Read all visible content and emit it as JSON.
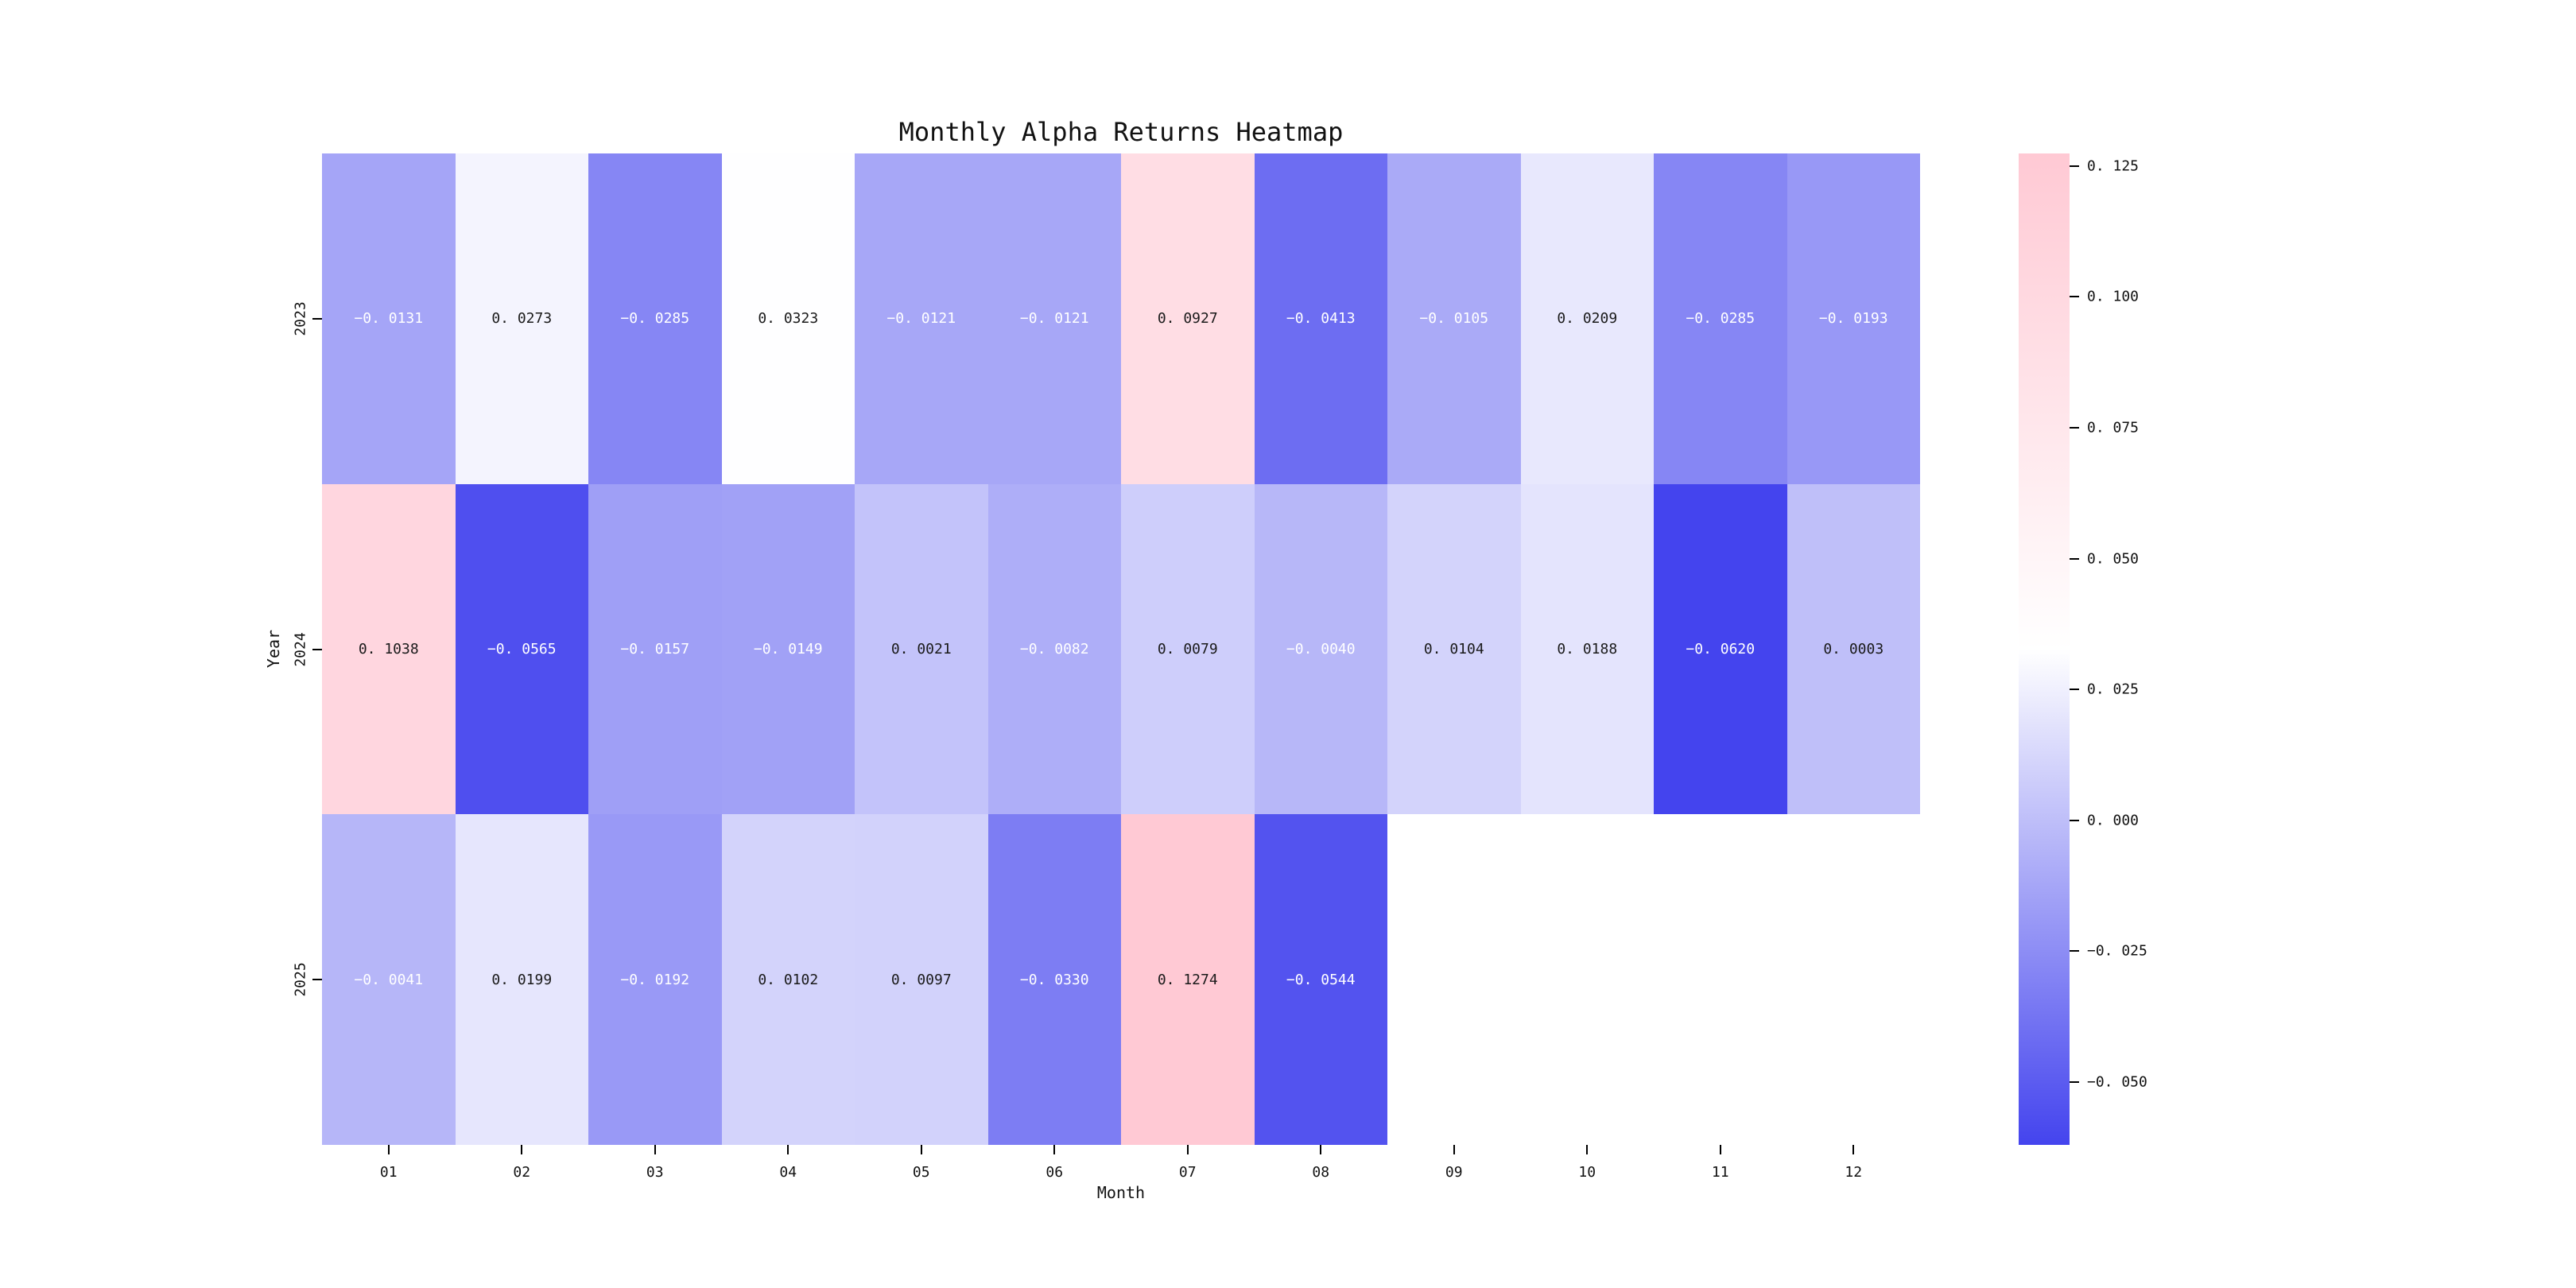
{
  "figure": {
    "title": "Monthly Alpha Returns Heatmap",
    "background_color": "#ffffff"
  },
  "chart_data": {
    "type": "heatmap",
    "title": "Monthly Alpha Returns Heatmap",
    "xlabel": "Month",
    "ylabel": "Year",
    "x_ticklabels": [
      "01",
      "02",
      "03",
      "04",
      "05",
      "06",
      "07",
      "08",
      "09",
      "10",
      "11",
      "12"
    ],
    "y_ticklabels": [
      "2023",
      "2024",
      "2025"
    ],
    "series": [
      {
        "name": "2023",
        "values": [
          -0.0131,
          0.0273,
          -0.0285,
          0.0323,
          -0.0121,
          -0.0121,
          0.0927,
          -0.0413,
          -0.0105,
          0.0209,
          -0.0285,
          -0.0193
        ]
      },
      {
        "name": "2024",
        "values": [
          0.1038,
          -0.0565,
          -0.0157,
          -0.0149,
          0.0021,
          -0.0082,
          0.0079,
          -0.004,
          0.0104,
          0.0188,
          -0.062,
          0.0003
        ]
      },
      {
        "name": "2025",
        "values": [
          -0.0041,
          0.0199,
          -0.0192,
          0.0102,
          0.0097,
          -0.033,
          0.1274,
          -0.0544,
          null,
          null,
          null,
          null
        ]
      }
    ],
    "vmin": -0.062,
    "vmax": 0.1274,
    "annotation_decimals": 4,
    "colormap": {
      "min_color": "#4444ee",
      "mid_color": "#ffffff",
      "max_color": "#ffc9d4"
    },
    "annotation_text_color_negative": "#ffffff",
    "annotation_text_color_nonnegative": "#1a1a1a",
    "empty_cell_color": "#ffffff",
    "colorbar": {
      "position": "right",
      "ticks": [
        0.125,
        0.1,
        0.075,
        0.05,
        0.025,
        0.0,
        -0.025,
        -0.05
      ],
      "tick_decimals": 3
    },
    "grid": false,
    "legend_position": "none"
  }
}
